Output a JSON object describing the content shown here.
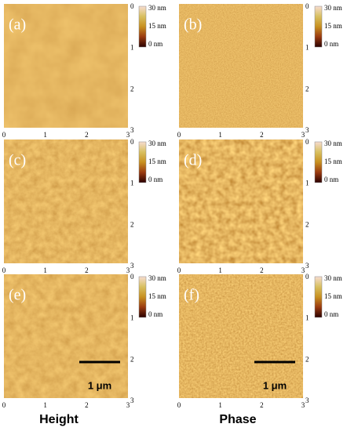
{
  "columns": [
    "Height",
    "Phase"
  ],
  "panels": [
    {
      "label": "(a)",
      "colorbar": [
        "30 nm",
        "15 nm",
        "0 nm"
      ],
      "y_ticks": [
        "0",
        "1",
        "2",
        "3"
      ],
      "x_ticks": [
        "0",
        "1",
        "2",
        "3"
      ]
    },
    {
      "label": "(b)",
      "colorbar": [
        "30 nm",
        "15 nm",
        "0 nm"
      ],
      "y_ticks": [
        "0",
        "1",
        "2",
        "3"
      ],
      "x_ticks": [
        "0",
        "1",
        "2",
        "3"
      ]
    },
    {
      "label": "(c)",
      "colorbar": [
        "30 nm",
        "15 nm",
        "0 nm"
      ],
      "y_ticks": [
        "0",
        "1",
        "2",
        "3"
      ],
      "x_ticks": [
        "0",
        "1",
        "2",
        "3"
      ]
    },
    {
      "label": "(d)",
      "colorbar": [
        "30 nm",
        "15 nm",
        "0 nm"
      ],
      "y_ticks": [
        "0",
        "1",
        "2",
        "3"
      ],
      "x_ticks": [
        "0",
        "1",
        "2",
        "3"
      ]
    },
    {
      "label": "(e)",
      "colorbar": [
        "30 nm",
        "15 nm",
        "0 nm"
      ],
      "y_ticks": [
        "0",
        "1",
        "2",
        "3"
      ],
      "x_ticks": [
        "0",
        "1",
        "2",
        "3"
      ],
      "scale_bar": "1 μm"
    },
    {
      "label": "(f)",
      "colorbar": [
        "30 nm",
        "15 nm",
        "0 nm"
      ],
      "y_ticks": [
        "0",
        "1",
        "2",
        "3"
      ],
      "x_ticks": [
        "0",
        "1",
        "2",
        "3"
      ],
      "scale_bar": "1 μm"
    }
  ]
}
